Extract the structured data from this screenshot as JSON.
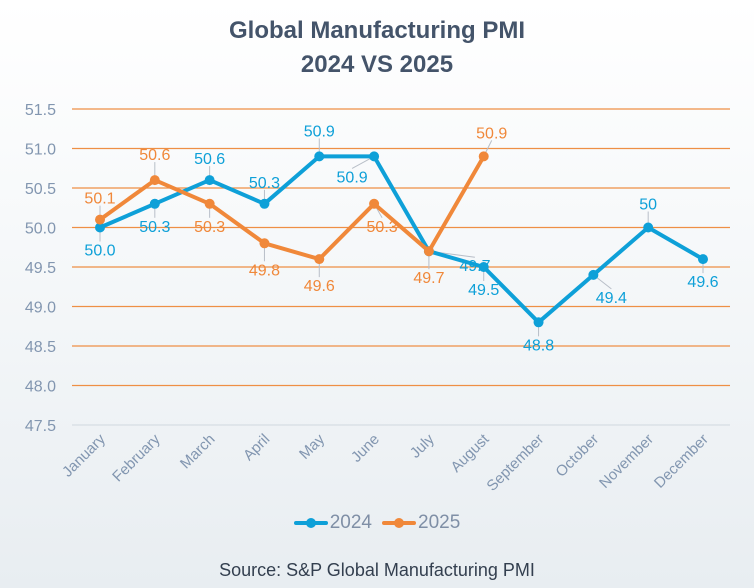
{
  "title_line1": "Global Manufacturing PMI",
  "title_line2": "2024 VS 2025",
  "source": "Source: S&P Global Manufacturing PMI",
  "colors": {
    "s2024": "#0ea0d8",
    "s2025": "#f0883a",
    "grid": "#ee8f45",
    "axis_text": "#8296b0",
    "leader": "#b8bec8"
  },
  "chart_data": {
    "type": "line",
    "title": "Global Manufacturing PMI 2024 VS 2025",
    "xlabel": "",
    "ylabel": "",
    "categories": [
      "January",
      "February",
      "March",
      "April",
      "May",
      "June",
      "July",
      "August",
      "September",
      "October",
      "November",
      "December"
    ],
    "ylim": [
      47.5,
      51.5
    ],
    "yticks": [
      "47.5",
      "48.0",
      "48.5",
      "49.0",
      "49.5",
      "50.0",
      "50.5",
      "51.0",
      "51.5"
    ],
    "grid": true,
    "legend": "bottom",
    "series": [
      {
        "name": "2024",
        "values": [
          50.0,
          50.3,
          50.6,
          50.3,
          50.9,
          50.9,
          49.7,
          49.5,
          48.8,
          49.4,
          50.0,
          49.6
        ],
        "labels": [
          "50.0",
          "50.3",
          "50.6",
          "50.3",
          "50.9",
          "50.9",
          "49.7",
          "49.5",
          "48.8",
          "49.4",
          "50",
          "49.6"
        ]
      },
      {
        "name": "2025",
        "values": [
          50.1,
          50.6,
          50.3,
          49.8,
          49.6,
          50.3,
          49.7,
          50.9
        ],
        "labels": [
          "50.1",
          "50.6",
          "50.3",
          "49.8",
          "49.6",
          "50.3",
          "49.7",
          "50.9"
        ]
      }
    ]
  }
}
